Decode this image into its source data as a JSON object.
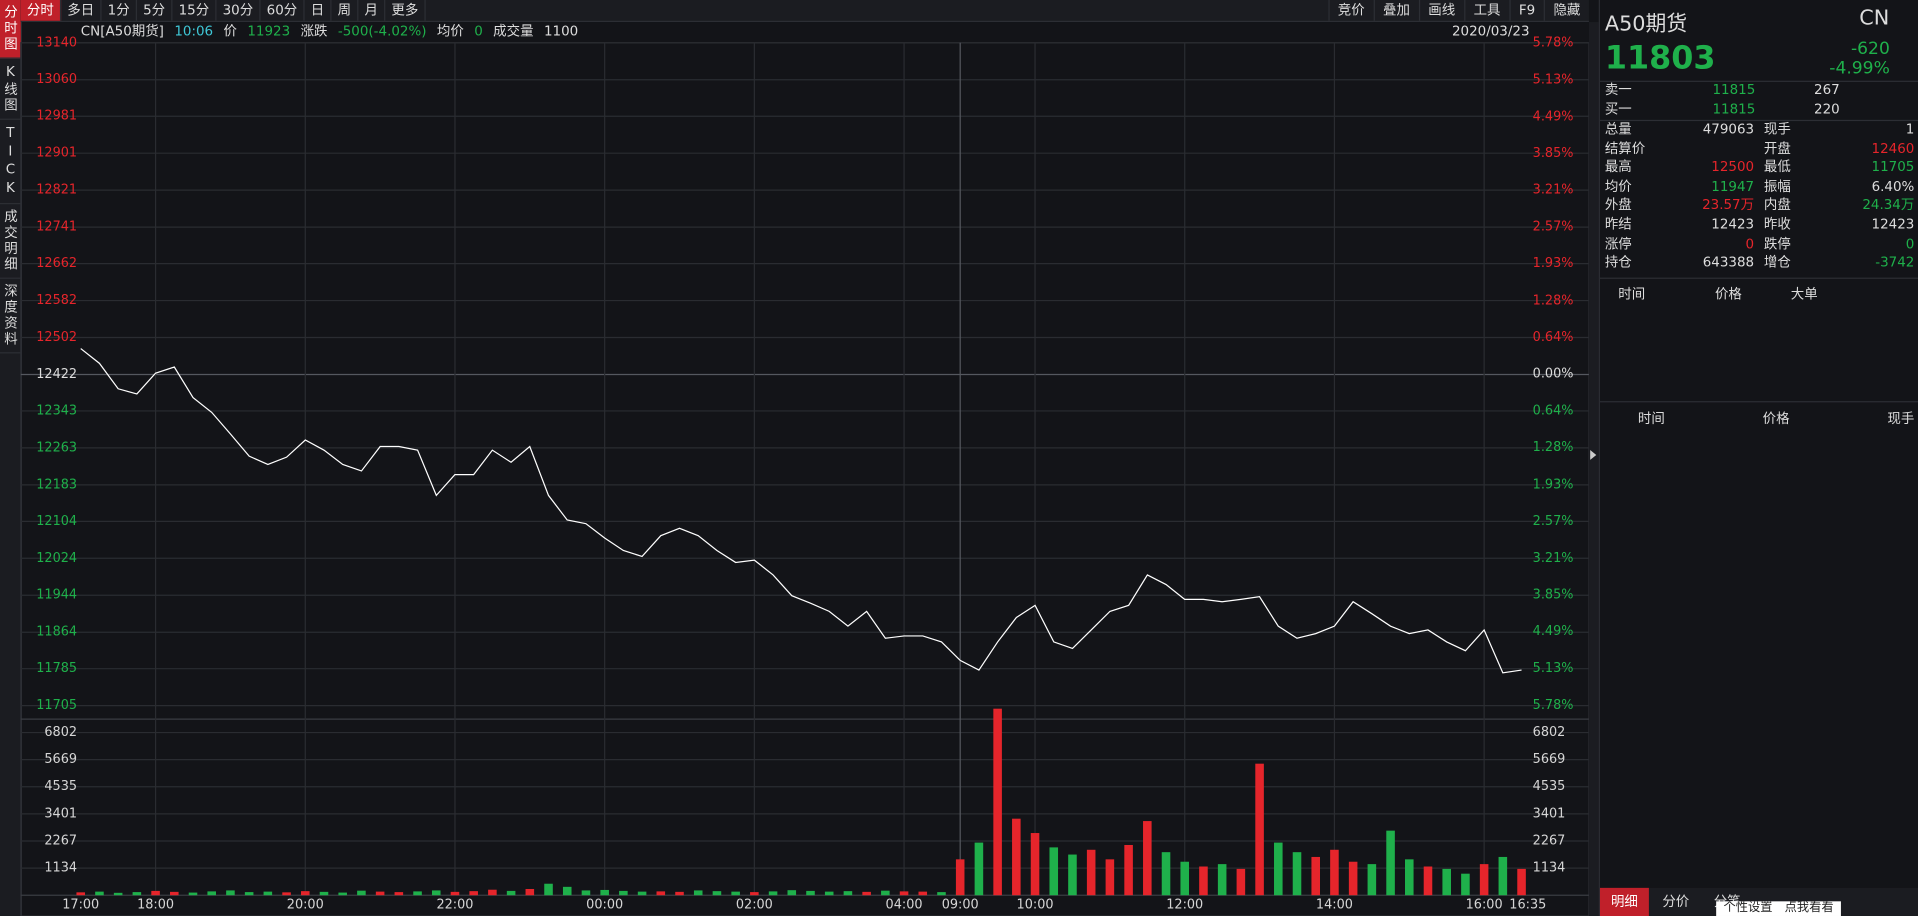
{
  "tabs": [
    "分时",
    "多日",
    "1分",
    "5分",
    "15分",
    "30分",
    "60分",
    "日",
    "周",
    "月",
    "更多"
  ],
  "tools": [
    "竞价",
    "叠加",
    "画线",
    "工具",
    "F9",
    "隐藏"
  ],
  "side_tabs": [
    "分时图",
    "K线图",
    "TICK",
    "成交明细",
    "深度资料"
  ],
  "info": {
    "name": "CN[A50期货]",
    "time": "10:06",
    "price_label": "价",
    "price": "11923",
    "change_label": "涨跌",
    "change": "-500(-4.02%)",
    "avg_label": "均价",
    "avg": "0",
    "vol_label": "成交量",
    "vol": "1100",
    "date": "2020/03/23"
  },
  "chart_data": {
    "type": "line",
    "base": 12422,
    "up_color": "#e5252b",
    "down_color": "#1fb04b",
    "flat_color": "#dddddd",
    "grid": true,
    "x": [
      "17:00",
      "17:15",
      "17:30",
      "17:45",
      "18:00",
      "18:15",
      "18:30",
      "18:45",
      "19:00",
      "19:15",
      "19:30",
      "19:45",
      "20:00",
      "20:15",
      "20:30",
      "20:45",
      "21:00",
      "21:15",
      "21:30",
      "21:45",
      "22:00",
      "22:15",
      "22:30",
      "22:45",
      "23:00",
      "23:15",
      "23:30",
      "23:45",
      "00:00",
      "00:15",
      "00:30",
      "00:45",
      "01:00",
      "01:15",
      "01:30",
      "01:45",
      "02:00",
      "02:15",
      "02:30",
      "02:45",
      "03:00",
      "03:15",
      "03:30",
      "03:45",
      "04:00",
      "04:15",
      "04:30",
      "04:45",
      "09:00",
      "09:15",
      "09:30",
      "09:45",
      "10:00",
      "10:15",
      "10:30",
      "10:45",
      "11:00",
      "11:15",
      "11:30",
      "11:45",
      "12:00",
      "12:15",
      "12:30",
      "12:45",
      "13:00",
      "13:15",
      "13:30",
      "13:45",
      "14:00",
      "14:15",
      "14:30",
      "14:45",
      "15:00",
      "15:15",
      "15:30",
      "15:45",
      "16:00",
      "16:15",
      "16:30"
    ],
    "xticks": [
      "17:00",
      "18:00",
      "20:00",
      "22:00",
      "00:00",
      "02:00",
      "04:00",
      "09:00",
      "10:00",
      "12:00",
      "14:00",
      "16:00",
      "16:35"
    ],
    "price": {
      "color": "#ffffff",
      "values": [
        12478,
        12446,
        12391,
        12380,
        12425,
        12438,
        12372,
        12340,
        12293,
        12245,
        12227,
        12243,
        12280,
        12258,
        12227,
        12213,
        12266,
        12266,
        12258,
        12160,
        12205,
        12205,
        12258,
        12232,
        12266,
        12160,
        12107,
        12099,
        12068,
        12041,
        12028,
        12073,
        12089,
        12073,
        12041,
        12015,
        12020,
        11988,
        11943,
        11927,
        11909,
        11877,
        11909,
        11851,
        11856,
        11856,
        11843,
        11803,
        11803,
        11782,
        11843,
        11896,
        11922,
        11843,
        11829,
        11869,
        11909,
        11922,
        11988,
        11967,
        11935,
        11935,
        11930,
        11935,
        11941,
        11877,
        11851,
        11861,
        11877,
        11930,
        11904,
        11877,
        11861,
        11869,
        11843,
        11824,
        11869,
        11776,
        11782
      ]
    },
    "ylim": [
      11705,
      13140
    ],
    "yticks": [
      13140,
      13060,
      12981,
      12901,
      12821,
      12741,
      12662,
      12582,
      12502,
      12422,
      12343,
      12263,
      12183,
      12104,
      12024,
      11944,
      11864,
      11785,
      11705
    ],
    "y2lim": [
      -5.78,
      5.78
    ],
    "y2ticks": [
      {
        "value": 5.78,
        "label": "5.78%"
      },
      {
        "value": 5.13,
        "label": "5.13%"
      },
      {
        "value": 4.49,
        "label": "4.49%"
      },
      {
        "value": 3.85,
        "label": "3.85%"
      },
      {
        "value": 3.21,
        "label": "3.21%"
      },
      {
        "value": 2.57,
        "label": "2.57%"
      },
      {
        "value": 1.93,
        "label": "1.93%"
      },
      {
        "value": 1.28,
        "label": "1.28%"
      },
      {
        "value": 0.64,
        "label": "0.64%"
      },
      {
        "value": 0,
        "label": "0.00%"
      },
      {
        "value": -0.64,
        "label": "0.64%"
      },
      {
        "value": -1.28,
        "label": "1.28%"
      },
      {
        "value": -1.93,
        "label": "1.93%"
      },
      {
        "value": -2.57,
        "label": "2.57%"
      },
      {
        "value": -3.21,
        "label": "3.21%"
      },
      {
        "value": -3.85,
        "label": "3.85%"
      },
      {
        "value": -4.49,
        "label": "4.49%"
      },
      {
        "value": -5.13,
        "label": "5.13%"
      },
      {
        "value": -5.78,
        "label": "5.78%"
      }
    ],
    "volume": {
      "ylim": [
        0,
        6802
      ],
      "yticks": [
        6802,
        5669,
        4535,
        3401,
        2267,
        1134
      ],
      "values": [
        120,
        150,
        100,
        130,
        180,
        140,
        110,
        160,
        200,
        130,
        150,
        120,
        170,
        140,
        110,
        190,
        150,
        130,
        160,
        200,
        140,
        170,
        230,
        180,
        260,
        480,
        350,
        200,
        220,
        180,
        150,
        160,
        140,
        200,
        170,
        150,
        130,
        160,
        210,
        180,
        150,
        170,
        140,
        190,
        160,
        150,
        130,
        170,
        1500,
        2200,
        7800,
        3200,
        2600,
        2000,
        1700,
        1900,
        1500,
        2100,
        3100,
        1800,
        1400,
        1200,
        1300,
        1100,
        5500,
        2200,
        1800,
        1600,
        1900,
        1400,
        1300,
        2700,
        1500,
        1200,
        1100,
        900,
        1300,
        1600,
        1100
      ]
    }
  },
  "quote": {
    "name": "A50期货",
    "market": "CN",
    "price": "11803",
    "change": "-620",
    "pct": "-4.99%",
    "book": [
      {
        "label": "卖一",
        "price": "11815",
        "qty": "267"
      },
      {
        "label": "买一",
        "price": "11815",
        "qty": "220"
      }
    ],
    "stats": [
      [
        {
          "label": "总量",
          "value": "479063",
          "color": "white"
        },
        {
          "label": "现手",
          "value": "1",
          "color": "white"
        }
      ],
      [
        {
          "label": "结算价",
          "value": "",
          "color": "white"
        },
        {
          "label": "开盘",
          "value": "12460",
          "color": "red"
        }
      ],
      [
        {
          "label": "最高",
          "value": "12500",
          "color": "red"
        },
        {
          "label": "最低",
          "value": "11705",
          "color": "green"
        }
      ],
      [
        {
          "label": "均价",
          "value": "11947",
          "color": "green"
        },
        {
          "label": "振幅",
          "value": "6.40%",
          "color": "white"
        }
      ],
      [
        {
          "label": "外盘",
          "value": "23.57万",
          "color": "red"
        },
        {
          "label": "内盘",
          "value": "24.34万",
          "color": "green"
        }
      ],
      [
        {
          "label": "昨结",
          "value": "12423",
          "color": "white"
        },
        {
          "label": "昨收",
          "value": "12423",
          "color": "white"
        }
      ],
      [
        {
          "label": "涨停",
          "value": "0",
          "color": "red"
        },
        {
          "label": "跌停",
          "value": "0",
          "color": "green"
        }
      ],
      [
        {
          "label": "持仓",
          "value": "643388",
          "color": "white"
        },
        {
          "label": "增仓",
          "value": "-3742",
          "color": "green"
        }
      ]
    ],
    "big_head": [
      "时间",
      "价格",
      "大单"
    ],
    "detail_head": [
      "时间",
      "价格",
      "现手"
    ],
    "bottom_tabs": [
      "明细",
      "分价",
      "分笔"
    ],
    "popup": [
      "个性设置",
      "点我看看"
    ]
  }
}
